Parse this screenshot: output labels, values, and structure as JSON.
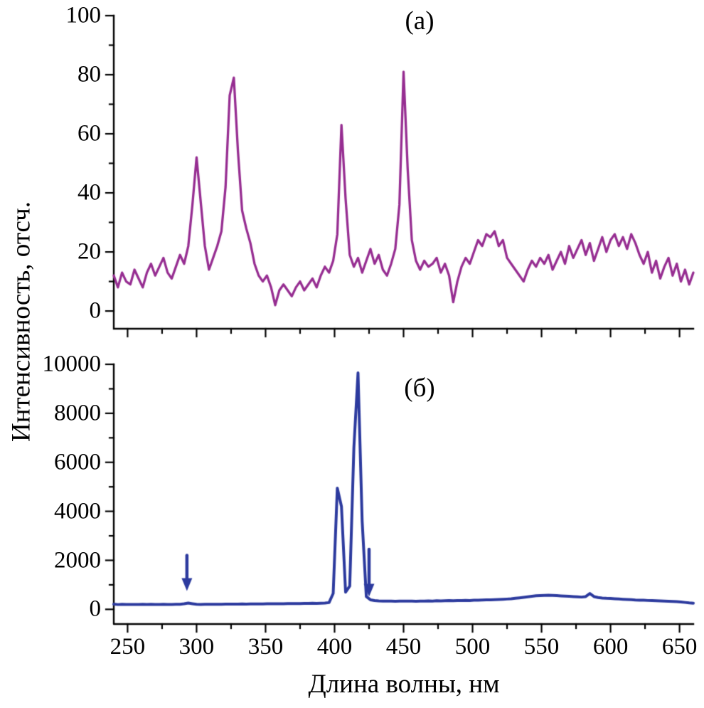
{
  "figure": {
    "xlabel": "Длина волны, нм",
    "ylabel": "Интенсивность, отсч.",
    "panel_a_label": "(а)",
    "panel_b_label": "(б)",
    "axis_color": "#000000",
    "background_color": "#ffffff"
  },
  "chart_data": [
    {
      "type": "line",
      "panel": "а",
      "title": "(а)",
      "color": "#962d91",
      "xlabel": "Длина волны, нм",
      "ylabel": "Интенсивность, отсч.",
      "xlim": [
        240,
        660
      ],
      "ylim": [
        0,
        100
      ],
      "yticks": [
        0,
        20,
        40,
        60,
        80,
        100
      ],
      "yticks_minor_step": 10,
      "xticks": [
        250,
        300,
        350,
        400,
        450,
        500,
        550,
        600,
        650
      ],
      "xticks_minor_step": 25,
      "show_x_tick_labels": false,
      "grid": false,
      "x_start": 240,
      "x_step": 3,
      "values": [
        12,
        8,
        13,
        10,
        9,
        14,
        11,
        8,
        13,
        16,
        12,
        15,
        18,
        13,
        11,
        15,
        19,
        16,
        22,
        36,
        52,
        37,
        22,
        14,
        18,
        22,
        27,
        42,
        73,
        79,
        54,
        34,
        28,
        23,
        16,
        12,
        10,
        12,
        8,
        2,
        7,
        9,
        7,
        5,
        8,
        10,
        7,
        9,
        11,
        8,
        12,
        15,
        13,
        17,
        26,
        63,
        38,
        19,
        15,
        18,
        13,
        17,
        21,
        16,
        19,
        14,
        12,
        16,
        21,
        36,
        81,
        48,
        24,
        17,
        14,
        17,
        15,
        16,
        18,
        13,
        16,
        12,
        3,
        10,
        15,
        18,
        16,
        20,
        24,
        22,
        26,
        25,
        27,
        22,
        24,
        18,
        16,
        14,
        12,
        10,
        14,
        17,
        15,
        18,
        16,
        19,
        14,
        17,
        20,
        16,
        22,
        18,
        21,
        24,
        19,
        23,
        17,
        21,
        25,
        20,
        24,
        26,
        22,
        25,
        21,
        26,
        23,
        19,
        16,
        20,
        13,
        17,
        11,
        15,
        18,
        12,
        16,
        10,
        14,
        9,
        13
      ],
      "annotations": []
    },
    {
      "type": "line",
      "panel": "б",
      "title": "(б)",
      "color": "#2c3a9e",
      "xlabel": "Длина волны, нм",
      "ylabel": "Интенсивность, отсч.",
      "xlim": [
        240,
        660
      ],
      "ylim": [
        0,
        10000
      ],
      "yticks": [
        0,
        2000,
        4000,
        6000,
        8000,
        10000
      ],
      "yticks_minor_step": 1000,
      "xticks": [
        250,
        300,
        350,
        400,
        450,
        500,
        550,
        600,
        650
      ],
      "xticks_minor_step": 25,
      "show_x_tick_labels": true,
      "grid": false,
      "x_start": 240,
      "x_step": 3,
      "values": [
        210,
        195,
        205,
        198,
        202,
        200,
        196,
        203,
        199,
        204,
        198,
        202,
        206,
        200,
        197,
        203,
        208,
        225,
        255,
        230,
        205,
        200,
        204,
        207,
        203,
        208,
        206,
        210,
        213,
        211,
        214,
        218,
        215,
        219,
        222,
        220,
        224,
        227,
        225,
        228,
        231,
        229,
        233,
        236,
        234,
        238,
        241,
        239,
        246,
        244,
        252,
        258,
        275,
        650,
        4950,
        4200,
        700,
        950,
        6600,
        9650,
        3600,
        520,
        390,
        360,
        345,
        340,
        335,
        340,
        332,
        338,
        334,
        340,
        336,
        332,
        340,
        336,
        344,
        340,
        350,
        346,
        352,
        356,
        350,
        360,
        356,
        364,
        360,
        370,
        376,
        380,
        386,
        390,
        396,
        402,
        410,
        420,
        432,
        450,
        470,
        492,
        512,
        532,
        552,
        562,
        572,
        576,
        570,
        560,
        550,
        540,
        530,
        520,
        510,
        500,
        520,
        645,
        520,
        482,
        462,
        450,
        442,
        432,
        422,
        412,
        402,
        392,
        382,
        376,
        370,
        362,
        356,
        350,
        346,
        340,
        332,
        322,
        312,
        300,
        282,
        262,
        250
      ],
      "annotations": [
        {
          "type": "arrow-down",
          "x": 293,
          "y_top": 2200,
          "y_tip": 750
        },
        {
          "type": "arrow-down",
          "x": 425,
          "y_top": 2450,
          "y_tip": 520
        }
      ]
    }
  ]
}
